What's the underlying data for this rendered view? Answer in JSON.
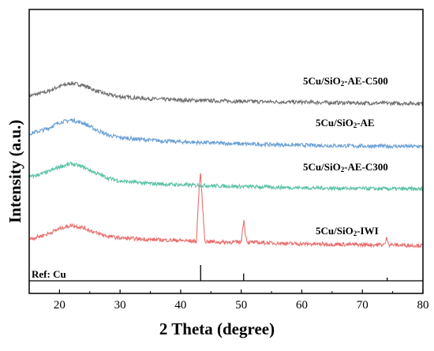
{
  "chart_data": {
    "type": "line",
    "xlabel": "2 Theta (degree)",
    "ylabel": "Intensity (a.u.)",
    "xlim": [
      15,
      80
    ],
    "xticks": [
      "20",
      "30",
      "40",
      "50",
      "60",
      "70",
      "80"
    ],
    "yticks_shown": false,
    "grid": false,
    "legend": "labels placed right of each trace",
    "series": [
      {
        "name": "5Cu/SiO2-AE-C500",
        "label_base": "5Cu/SiO",
        "label_sub": "2",
        "label_suffix": "-AE-C500",
        "color": "#707070",
        "x": [
          15,
          18,
          20,
          22,
          24,
          26,
          28,
          30,
          35,
          40,
          50,
          60,
          70,
          80
        ],
        "y": [
          2.95,
          3.05,
          3.18,
          3.25,
          3.2,
          3.07,
          2.98,
          2.93,
          2.88,
          2.85,
          2.82,
          2.8,
          2.78,
          2.77
        ]
      },
      {
        "name": "5Cu/SiO2-AE",
        "label_base": "5Cu/SiO",
        "label_sub": "2",
        "label_suffix": "-AE",
        "color": "#6a9fd4",
        "x": [
          15,
          18,
          20,
          22,
          24,
          26,
          28,
          30,
          35,
          40,
          50,
          60,
          70,
          80
        ],
        "y": [
          2.05,
          2.17,
          2.32,
          2.38,
          2.3,
          2.15,
          2.02,
          1.96,
          1.9,
          1.86,
          1.81,
          1.78,
          1.76,
          1.75
        ]
      },
      {
        "name": "5Cu/SiO2-AE-C300",
        "label_base": "5Cu/SiO",
        "label_sub": "2",
        "label_suffix": "-AE-C300",
        "color": "#5cc2a6",
        "x": [
          15,
          18,
          20,
          22,
          24,
          26,
          28,
          30,
          35,
          40,
          50,
          60,
          70,
          80
        ],
        "y": [
          1.02,
          1.14,
          1.27,
          1.34,
          1.26,
          1.12,
          1.0,
          0.93,
          0.87,
          0.84,
          0.8,
          0.77,
          0.75,
          0.74
        ]
      },
      {
        "name": "5Cu/SiO2-IWI",
        "label_base": "5Cu/SiO",
        "label_sub": "2",
        "label_suffix": "-IWI",
        "color": "#e86e6e",
        "x": [
          15,
          18,
          20,
          22,
          24,
          26,
          28,
          30,
          35,
          40,
          42.6,
          43.1,
          43.3,
          43.5,
          44.0,
          46,
          50.0,
          50.3,
          50.45,
          50.6,
          51.0,
          55,
          60,
          65,
          70,
          73.7,
          74.05,
          74.4,
          76,
          80
        ],
        "y": [
          -0.45,
          -0.33,
          -0.2,
          -0.12,
          -0.18,
          -0.3,
          -0.38,
          -0.42,
          -0.46,
          -0.48,
          -0.5,
          0.9,
          1.1,
          0.6,
          -0.5,
          -0.52,
          -0.52,
          -0.1,
          0.0,
          -0.25,
          -0.52,
          -0.54,
          -0.56,
          -0.57,
          -0.58,
          -0.58,
          -0.4,
          -0.58,
          -0.59,
          -0.6
        ]
      }
    ],
    "reference": {
      "name": "Ref: Cu",
      "peaks": [
        {
          "x": 43.3,
          "intensity": 100
        },
        {
          "x": 50.4,
          "intensity": 46
        },
        {
          "x": 74.1,
          "intensity": 20
        }
      ]
    }
  }
}
